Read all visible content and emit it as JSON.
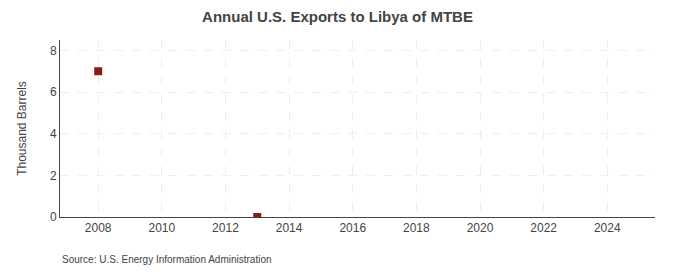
{
  "chart_data": {
    "type": "scatter",
    "title": "Annual U.S. Exports to Libya of MTBE",
    "ylabel": "Thousand Barrels",
    "annotations": [
      "Source: U.S. Energy Information Administration"
    ],
    "x": [
      2008,
      2013
    ],
    "values": [
      7,
      0.0
    ],
    "color": "#8B1A1A",
    "marker": "square",
    "xlim": [
      2006.8,
      2025.5
    ],
    "ylim": [
      0,
      8.5
    ],
    "xticks": [
      2008,
      2010,
      2012,
      2014,
      2016,
      2018,
      2020,
      2022,
      2024
    ],
    "yticks": [
      0,
      2,
      4,
      6,
      8
    ],
    "grid": true
  }
}
